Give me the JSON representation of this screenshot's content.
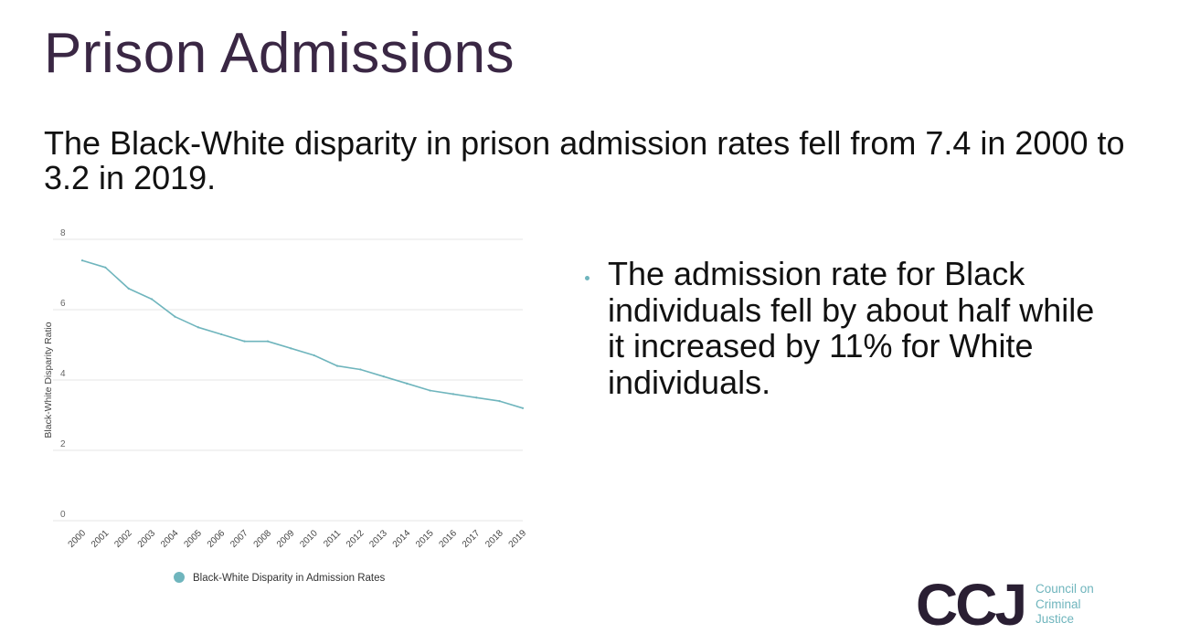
{
  "slide": {
    "title": "Prison Admissions",
    "subtitle": "The Black-White disparity in prison admission rates fell from 7.4 in 2000 to 3.2 in 2019.",
    "bullet": "The admission rate for Black individuals fell by about half while it increased by 11% for White individuals."
  },
  "logo": {
    "mark": "CCJ",
    "line1": "Council on",
    "line2": "Criminal",
    "line3": "Justice"
  },
  "colors": {
    "title": "#3a2744",
    "accent": "#6fb5bd",
    "line": "#6fb5bd",
    "grid": "#e6e6e6",
    "tick_text": "#666666",
    "logo_mark": "#2a1f33"
  },
  "chart_data": {
    "type": "line",
    "title": "",
    "xlabel": "",
    "ylabel": "Black-White Disparity Ratio",
    "ylim": [
      0,
      8
    ],
    "yticks": [
      "0",
      "2",
      "4",
      "6",
      "8"
    ],
    "grid": true,
    "legend_position": "bottom",
    "categories": [
      "2000",
      "2001",
      "2002",
      "2003",
      "2004",
      "2005",
      "2006",
      "2007",
      "2008",
      "2009",
      "2010",
      "2011",
      "2012",
      "2013",
      "2014",
      "2015",
      "2016",
      "2017",
      "2018",
      "2019"
    ],
    "series": [
      {
        "name": "Black-White Disparity in Admission Rates",
        "values": [
          7.4,
          7.2,
          6.6,
          6.3,
          5.8,
          5.5,
          5.3,
          5.1,
          5.1,
          4.9,
          4.7,
          4.4,
          4.3,
          4.1,
          3.9,
          3.7,
          3.6,
          3.5,
          3.4,
          3.2
        ]
      }
    ]
  }
}
